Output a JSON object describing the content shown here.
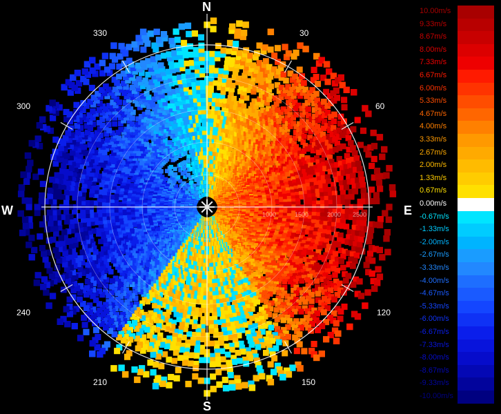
{
  "compass": {
    "north": "N",
    "south": "S",
    "east": "E",
    "west": "W"
  },
  "bearings": [
    "30",
    "60",
    "120",
    "150",
    "210",
    "240",
    "300",
    "330"
  ],
  "range_labels": [
    "1000",
    "1500",
    "2000",
    "2500"
  ],
  "legend": [
    {
      "label": "10.00m/s",
      "color": "#a80000"
    },
    {
      "label": "9.33m/s",
      "color": "#b80000"
    },
    {
      "label": "8.67m/s",
      "color": "#c80000"
    },
    {
      "label": "8.00m/s",
      "color": "#dc0000"
    },
    {
      "label": "7.33m/s",
      "color": "#ee0000"
    },
    {
      "label": "6.67m/s",
      "color": "#ff1a00"
    },
    {
      "label": "6.00m/s",
      "color": "#ff3300"
    },
    {
      "label": "5.33m/s",
      "color": "#ff4d00"
    },
    {
      "label": "4.67m/s",
      "color": "#ff6600"
    },
    {
      "label": "4.00m/s",
      "color": "#ff8000"
    },
    {
      "label": "3.33m/s",
      "color": "#ff9900"
    },
    {
      "label": "2.67m/s",
      "color": "#ffaa00"
    },
    {
      "label": "2.00m/s",
      "color": "#ffbb00"
    },
    {
      "label": "1.33m/s",
      "color": "#ffcc00"
    },
    {
      "label": "0.67m/s",
      "color": "#ffe000"
    },
    {
      "label": "0.00m/s",
      "color": "#ffffff"
    },
    {
      "label": "-0.67m/s",
      "color": "#00e5ff"
    },
    {
      "label": "-1.33m/s",
      "color": "#00ccff"
    },
    {
      "label": "-2.00m/s",
      "color": "#00b4ff"
    },
    {
      "label": "-2.67m/s",
      "color": "#1a9cff"
    },
    {
      "label": "-3.33m/s",
      "color": "#2288ff"
    },
    {
      "label": "-4.00m/s",
      "color": "#1e6eff"
    },
    {
      "label": "-4.67m/s",
      "color": "#1a5aff"
    },
    {
      "label": "-5.33m/s",
      "color": "#1446ff"
    },
    {
      "label": "-6.00m/s",
      "color": "#0f32f5"
    },
    {
      "label": "-6.67m/s",
      "color": "#0a1eeb"
    },
    {
      "label": "-7.33m/s",
      "color": "#0814dc"
    },
    {
      "label": "-8.00m/s",
      "color": "#060ccb"
    },
    {
      "label": "-8.67m/s",
      "color": "#0408b4"
    },
    {
      "label": "-9.33m/s",
      "color": "#02049c"
    },
    {
      "label": "-10.00m/s",
      "color": "#000080"
    }
  ]
}
